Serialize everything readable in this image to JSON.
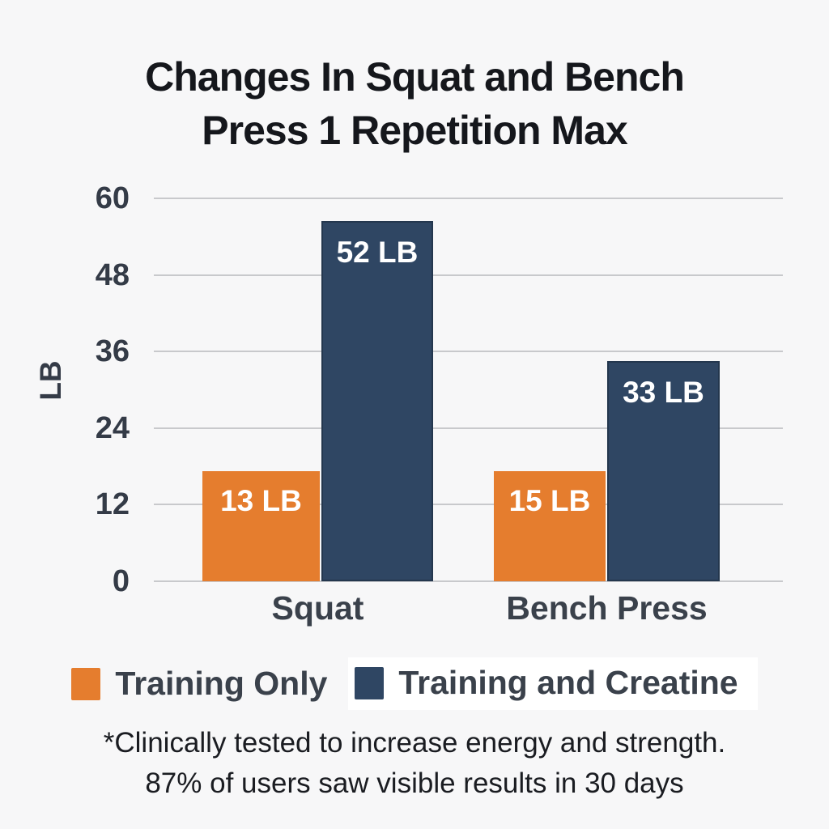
{
  "title": {
    "line1": "Changes In Squat and Bench",
    "line2": "Press 1 Repetition Max"
  },
  "colors": {
    "background": "#F7F7F8",
    "orange": "#E57D2E",
    "navy": "#2F4663",
    "navy_border": "#24374E",
    "gridline": "#C8C9CC",
    "title_text": "#15171C",
    "axis_text": "#343B47",
    "category_text": "#3A414B",
    "footnote_text": "#1A1C21",
    "bar_label_text": "#FFFFFF",
    "legend_bg_highlight": "#FFFFFF"
  },
  "chart_data": {
    "type": "bar",
    "title": "Changes In Squat and Bench Press 1 Repetition Max",
    "xlabel": "",
    "ylabel": "LB",
    "ylim": [
      0,
      60
    ],
    "yticks": [
      0,
      12,
      24,
      36,
      48,
      60
    ],
    "grid": true,
    "legend_position": "bottom",
    "categories": [
      "Squat",
      "Bench Press"
    ],
    "series": [
      {
        "name": "Training Only",
        "color_key": "orange",
        "values": [
          13,
          15
        ],
        "labels": [
          "13 LB",
          "15 LB"
        ],
        "display_heights_lb": [
          17.3,
          17.2
        ]
      },
      {
        "name": "Training and Creatine",
        "color_key": "navy",
        "values": [
          52,
          33
        ],
        "labels": [
          "52 LB",
          "33 LB"
        ],
        "display_heights_lb": [
          56.5,
          34.5
        ]
      }
    ]
  },
  "legend": {
    "items": [
      {
        "label": "Training Only",
        "color_key": "orange",
        "highlight": false
      },
      {
        "label": "Training and Creatine",
        "color_key": "navy",
        "highlight": true
      }
    ]
  },
  "footnote": {
    "line1": "*Clinically tested to increase energy and strength.",
    "line2": "87% of users saw visible results in 30 days"
  }
}
